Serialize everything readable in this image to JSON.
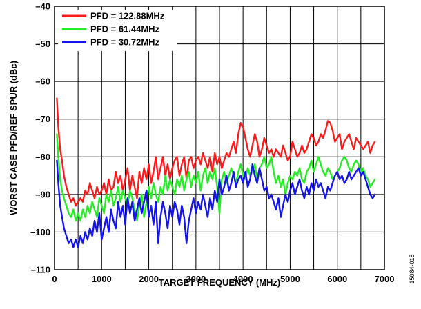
{
  "chart_data": {
    "type": "line",
    "title": "",
    "xlabel": "TARGET FREQUENCY (MHz)",
    "ylabel": "WORST CASE PFD/REF SPUR (dBc)",
    "xlim": [
      0,
      7000
    ],
    "ylim": [
      -110,
      -40
    ],
    "x_ticks": [
      "0",
      "1000",
      "2000",
      "3000",
      "4000",
      "5000",
      "6000",
      "7000"
    ],
    "y_ticks": [
      "–40",
      "–50",
      "–60",
      "–70",
      "–80",
      "–90",
      "–100",
      "–110"
    ],
    "grid": true,
    "legend_position": "top-left",
    "figure_id": "15084-015",
    "series": [
      {
        "name": "PFD = 122.88MHz",
        "color": "#ff1a1a",
        "x": [
          50,
          80,
          120,
          160,
          200,
          250,
          300,
          350,
          400,
          450,
          500,
          550,
          600,
          650,
          700,
          750,
          800,
          850,
          900,
          950,
          1000,
          1050,
          1100,
          1150,
          1200,
          1250,
          1300,
          1350,
          1400,
          1450,
          1500,
          1550,
          1600,
          1650,
          1700,
          1750,
          1800,
          1850,
          1900,
          1950,
          2000,
          2050,
          2100,
          2150,
          2200,
          2250,
          2300,
          2350,
          2400,
          2450,
          2500,
          2550,
          2600,
          2650,
          2700,
          2750,
          2800,
          2850,
          2900,
          2950,
          3000,
          3050,
          3100,
          3150,
          3200,
          3250,
          3300,
          3350,
          3400,
          3450,
          3500,
          3550,
          3600,
          3650,
          3700,
          3750,
          3800,
          3850,
          3900,
          3950,
          4000,
          4050,
          4100,
          4150,
          4200,
          4250,
          4300,
          4350,
          4400,
          4450,
          4500,
          4550,
          4600,
          4650,
          4700,
          4750,
          4800,
          4850,
          4900,
          4950,
          5000,
          5050,
          5100,
          5150,
          5200,
          5250,
          5300,
          5350,
          5400,
          5450,
          5500,
          5550,
          5600,
          5650,
          5700,
          5750,
          5800,
          5850,
          5900,
          5950,
          6000,
          6050,
          6100,
          6150,
          6200,
          6250,
          6300,
          6350,
          6400,
          6450,
          6500,
          6550,
          6600,
          6650,
          6700,
          6750,
          6800
        ],
        "y": [
          -64.5,
          -72,
          -78,
          -81,
          -85,
          -88,
          -90,
          -92,
          -91,
          -93,
          -92,
          -91,
          -92,
          -89,
          -90,
          -87,
          -89,
          -91,
          -88,
          -90,
          -89,
          -87,
          -90,
          -86,
          -89,
          -88,
          -84,
          -87,
          -85,
          -89,
          -86,
          -83,
          -89,
          -85,
          -88,
          -91,
          -84,
          -87,
          -83,
          -86,
          -82,
          -87,
          -84,
          -80,
          -86,
          -83,
          -80,
          -85,
          -82,
          -86,
          -83,
          -81,
          -80,
          -85,
          -82,
          -80,
          -86,
          -81,
          -80,
          -83,
          -81,
          -80,
          -82,
          -79,
          -81,
          -83,
          -80,
          -84,
          -79,
          -82,
          -80,
          -83,
          -81,
          -79,
          -80,
          -78,
          -76,
          -79,
          -74,
          -71,
          -72,
          -75,
          -78,
          -80,
          -77,
          -74,
          -76,
          -80,
          -78,
          -75,
          -77,
          -79,
          -78,
          -80,
          -78,
          -79,
          -80,
          -77,
          -79,
          -81,
          -80,
          -76,
          -78,
          -80,
          -79,
          -77,
          -79,
          -78,
          -76,
          -74,
          -75,
          -77,
          -76,
          -74,
          -75,
          -73,
          -70.5,
          -71,
          -73,
          -76,
          -75,
          -74,
          -78,
          -76,
          -75,
          -74,
          -76,
          -78,
          -75,
          -76,
          -77,
          -78,
          -77,
          -76,
          -79,
          -77,
          -76
        ]
      },
      {
        "name": "PFD = 61.44MHz",
        "color": "#22ee22",
        "x": [
          50,
          80,
          120,
          160,
          200,
          250,
          300,
          350,
          400,
          450,
          500,
          550,
          600,
          650,
          700,
          750,
          800,
          850,
          900,
          950,
          1000,
          1050,
          1100,
          1150,
          1200,
          1250,
          1300,
          1350,
          1400,
          1450,
          1500,
          1550,
          1600,
          1650,
          1700,
          1750,
          1800,
          1850,
          1900,
          1950,
          2000,
          2050,
          2100,
          2150,
          2200,
          2250,
          2300,
          2350,
          2400,
          2450,
          2500,
          2550,
          2600,
          2650,
          2700,
          2750,
          2800,
          2850,
          2900,
          2950,
          3000,
          3050,
          3100,
          3150,
          3200,
          3250,
          3300,
          3350,
          3400,
          3450,
          3500,
          3550,
          3600,
          3650,
          3700,
          3750,
          3800,
          3850,
          3900,
          3950,
          4000,
          4050,
          4100,
          4150,
          4200,
          4250,
          4300,
          4350,
          4400,
          4450,
          4500,
          4550,
          4600,
          4650,
          4700,
          4750,
          4800,
          4850,
          4900,
          4950,
          5000,
          5050,
          5100,
          5150,
          5200,
          5250,
          5300,
          5350,
          5400,
          5450,
          5500,
          5550,
          5600,
          5650,
          5700,
          5750,
          5800,
          5850,
          5900,
          5950,
          6000,
          6050,
          6100,
          6150,
          6200,
          6250,
          6300,
          6350,
          6400,
          6450,
          6500,
          6550,
          6600,
          6650,
          6700,
          6750,
          6800
        ],
        "y": [
          -74,
          -80,
          -86,
          -89,
          -91,
          -93,
          -95,
          -96,
          -94,
          -97,
          -95,
          -97,
          -94,
          -96,
          -93,
          -95,
          -92,
          -94,
          -96,
          -91,
          -93,
          -95,
          -90,
          -92,
          -89,
          -93,
          -91,
          -88,
          -92,
          -89,
          -91,
          -93,
          -89,
          -91,
          -94,
          -97,
          -93,
          -90,
          -96,
          -92,
          -88,
          -91,
          -87,
          -90,
          -92,
          -88,
          -90,
          -85,
          -89,
          -86,
          -88,
          -90,
          -86,
          -88,
          -85,
          -89,
          -86,
          -84,
          -88,
          -85,
          -87,
          -84,
          -89,
          -85,
          -83,
          -87,
          -84,
          -86,
          -83,
          -88,
          -95,
          -86,
          -84,
          -87,
          -85,
          -83,
          -85,
          -87,
          -84,
          -82,
          -85,
          -86,
          -83,
          -85,
          -84,
          -82,
          -86,
          -83,
          -82,
          -80,
          -83,
          -82,
          -80,
          -84,
          -87,
          -85,
          -88,
          -86,
          -90,
          -87,
          -85,
          -86,
          -84,
          -85,
          -83,
          -86,
          -87,
          -84,
          -83,
          -81,
          -84,
          -82,
          -80,
          -82,
          -84,
          -85,
          -83,
          -84,
          -86,
          -85,
          -84,
          -83,
          -81,
          -80,
          -81,
          -83,
          -84,
          -82,
          -81,
          -82,
          -84,
          -83,
          -85,
          -86,
          -88,
          -87,
          -86
        ]
      },
      {
        "name": "PFD = 30.72MHz",
        "color": "#1414ee",
        "x": [
          50,
          80,
          120,
          160,
          200,
          250,
          300,
          350,
          400,
          450,
          500,
          550,
          600,
          650,
          700,
          750,
          800,
          850,
          900,
          950,
          1000,
          1050,
          1100,
          1150,
          1200,
          1250,
          1300,
          1350,
          1400,
          1450,
          1500,
          1550,
          1600,
          1650,
          1700,
          1750,
          1800,
          1850,
          1900,
          1950,
          2000,
          2050,
          2100,
          2150,
          2200,
          2250,
          2300,
          2350,
          2400,
          2450,
          2500,
          2550,
          2600,
          2650,
          2700,
          2750,
          2800,
          2850,
          2900,
          2950,
          3000,
          3050,
          3100,
          3150,
          3200,
          3250,
          3300,
          3350,
          3400,
          3450,
          3500,
          3550,
          3600,
          3650,
          3700,
          3750,
          3800,
          3850,
          3900,
          3950,
          4000,
          4050,
          4100,
          4150,
          4200,
          4250,
          4300,
          4350,
          4400,
          4450,
          4500,
          4550,
          4600,
          4650,
          4700,
          4750,
          4800,
          4850,
          4900,
          4950,
          5000,
          5050,
          5100,
          5150,
          5200,
          5250,
          5300,
          5350,
          5400,
          5450,
          5500,
          5550,
          5600,
          5650,
          5700,
          5750,
          5800,
          5850,
          5900,
          5950,
          6000,
          6050,
          6100,
          6150,
          6200,
          6250,
          6300,
          6350,
          6400,
          6450,
          6500,
          6550,
          6600,
          6650,
          6700,
          6750,
          6800
        ],
        "y": [
          -81,
          -87,
          -93,
          -96,
          -99,
          -101,
          -103,
          -102,
          -104,
          -102,
          -104,
          -101,
          -103,
          -100,
          -102,
          -99,
          -101,
          -97,
          -100,
          -95,
          -102,
          -99,
          -96,
          -100,
          -94,
          -97,
          -99,
          -92,
          -96,
          -93,
          -98,
          -91,
          -95,
          -92,
          -97,
          -94,
          -91,
          -95,
          -92,
          -89,
          -96,
          -93,
          -98,
          -92,
          -103,
          -96,
          -92,
          -95,
          -99,
          -93,
          -96,
          -92,
          -94,
          -98,
          -93,
          -96,
          -103,
          -97,
          -94,
          -91,
          -95,
          -92,
          -94,
          -90,
          -93,
          -96,
          -91,
          -94,
          -89,
          -92,
          -86,
          -90,
          -88,
          -85,
          -89,
          -87,
          -84,
          -88,
          -86,
          -85,
          -87,
          -84,
          -88,
          -86,
          -82,
          -85,
          -87,
          -83,
          -86,
          -89,
          -88,
          -91,
          -90,
          -92,
          -94,
          -91,
          -96,
          -93,
          -90,
          -92,
          -89,
          -87,
          -90,
          -88,
          -86,
          -89,
          -91,
          -88,
          -90,
          -87,
          -89,
          -86,
          -88,
          -87,
          -89,
          -91,
          -88,
          -89,
          -87,
          -85,
          -84,
          -86,
          -85,
          -87,
          -86,
          -84,
          -86,
          -85,
          -84,
          -83,
          -85,
          -84,
          -86,
          -88,
          -90,
          -91,
          -90
        ]
      }
    ]
  }
}
